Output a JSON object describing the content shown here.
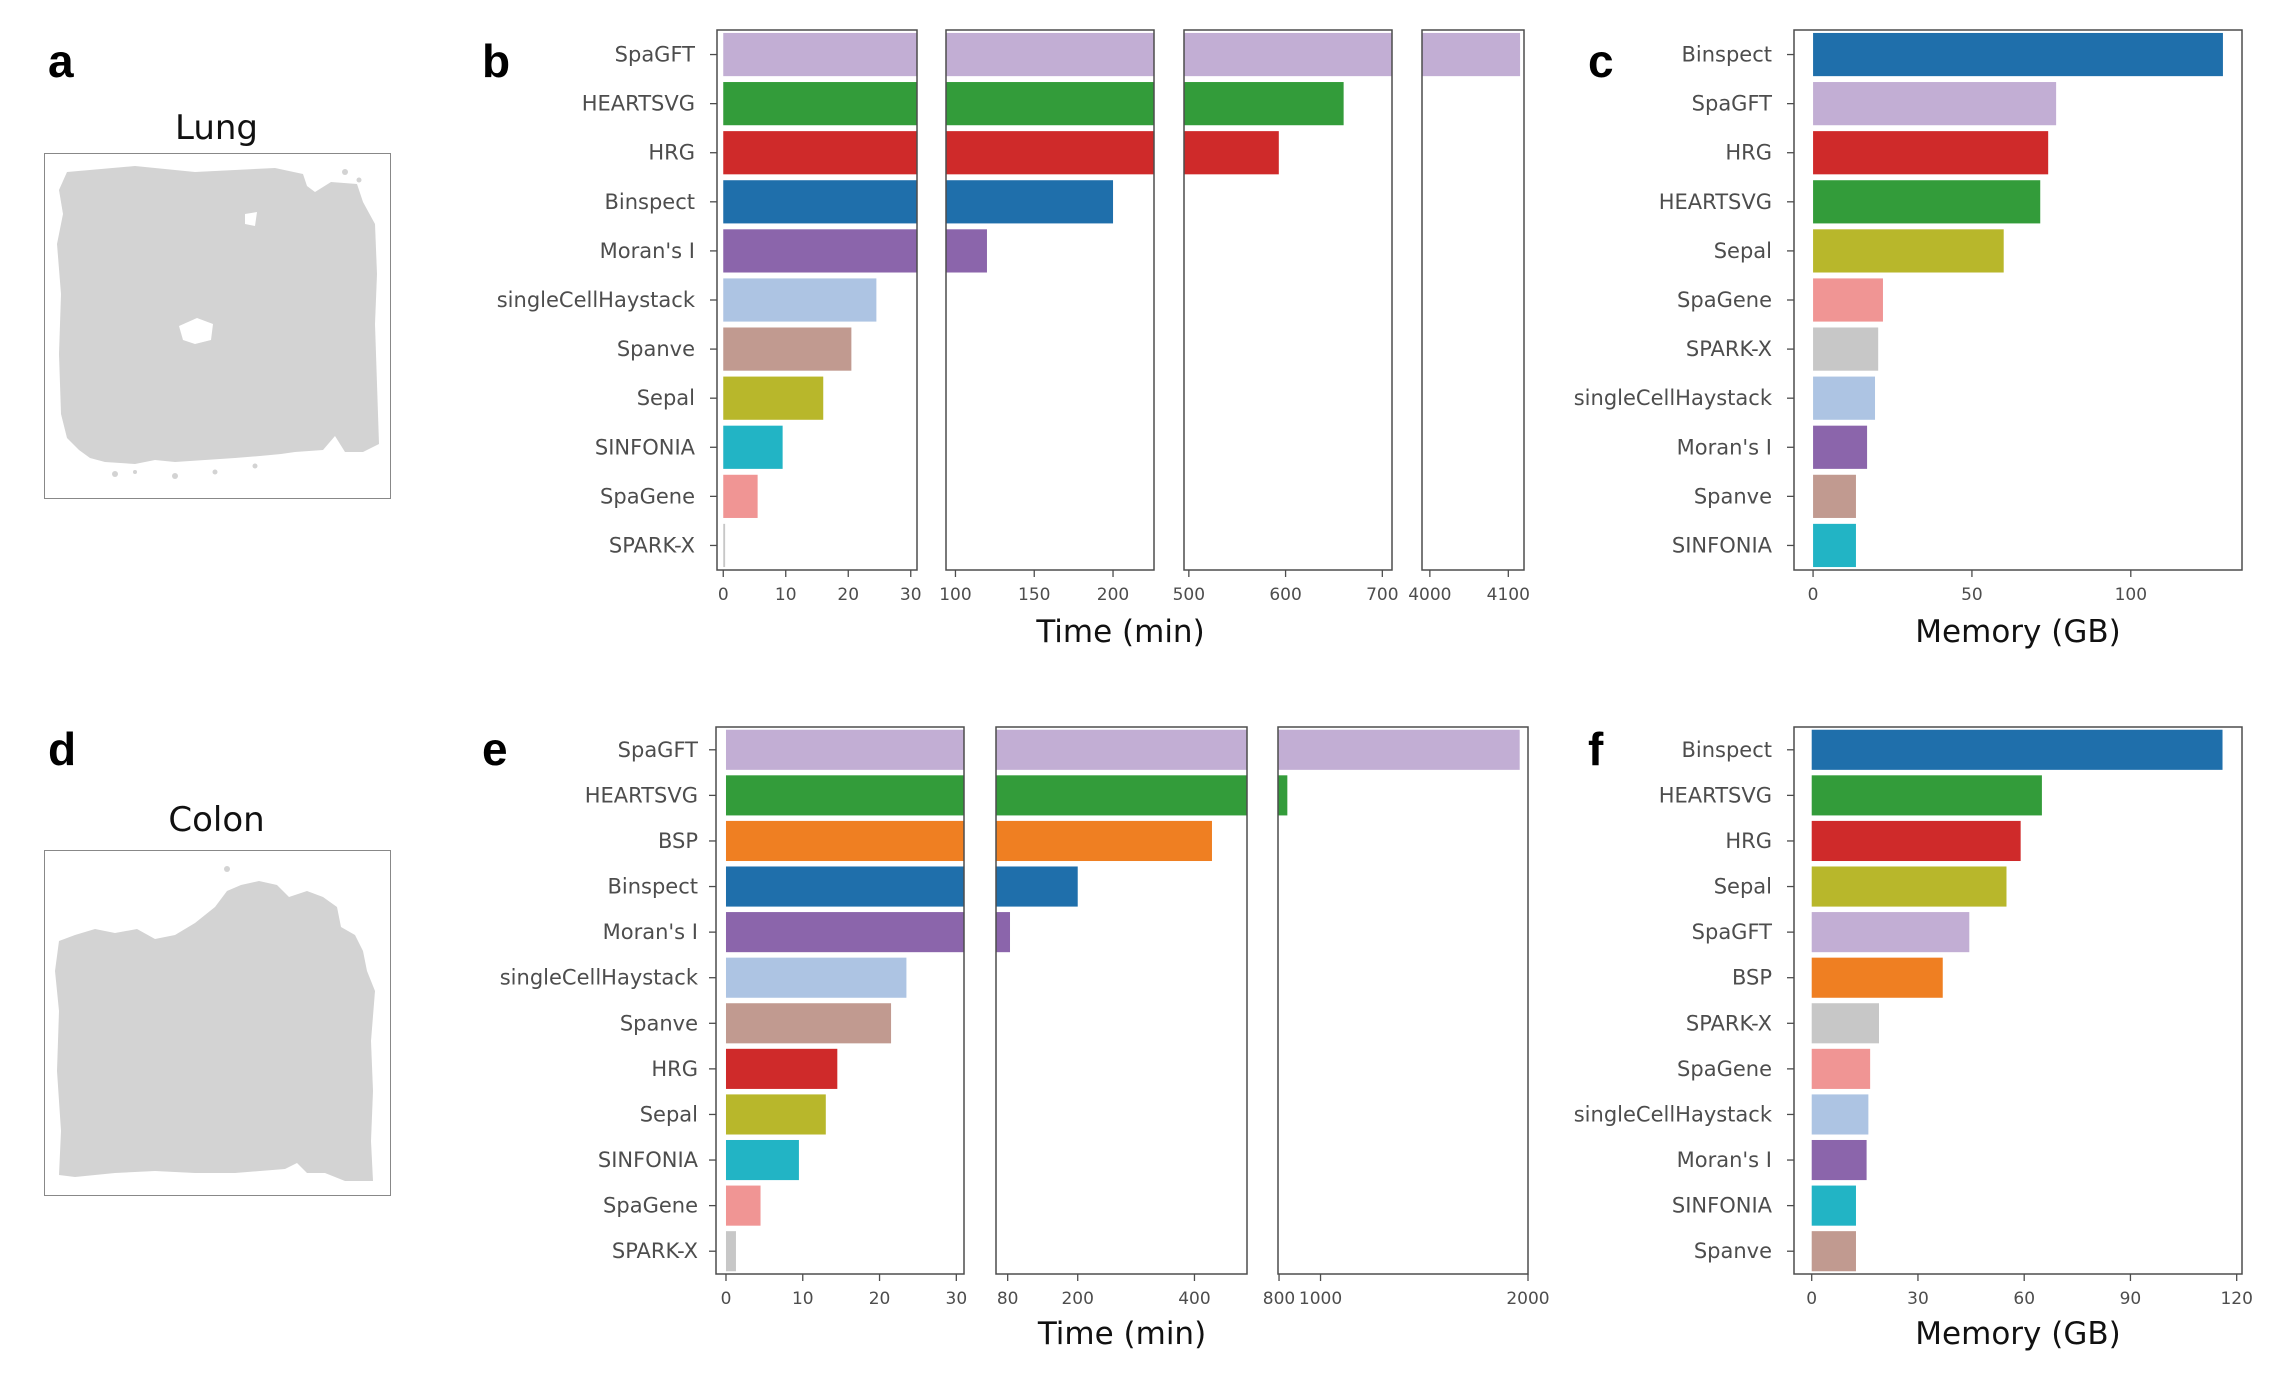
{
  "panel_labels": {
    "a": "a",
    "b": "b",
    "c": "c",
    "d": "d",
    "e": "e",
    "f": "f"
  },
  "tissues": {
    "lung": "Lung",
    "colon": "Colon"
  },
  "chart_data": [
    {
      "id": "b",
      "type": "bar",
      "orientation": "horizontal",
      "broken_axis": true,
      "xlabel": "Time (min)",
      "categories": [
        "SpaGFT",
        "HEARTSVG",
        "HRG",
        "Binspect",
        "Moran's I",
        "singleCellHaystack",
        "Spanve",
        "Sepal",
        "SINFONIA",
        "SpaGene",
        "SPARK-X"
      ],
      "values": [
        4115,
        660,
        593,
        200,
        120,
        24.5,
        20.5,
        16,
        9.5,
        5.5,
        0.3
      ],
      "colors": [
        "#c2aed4",
        "#339c3a",
        "#cf2a2a",
        "#1f6fab",
        "#8b65ab",
        "#adc4e3",
        "#c19a90",
        "#b8b72b",
        "#22b4c5",
        "#f09594",
        "#c7c7c7"
      ],
      "segments": [
        {
          "range": [
            -1,
            31
          ],
          "ticks": [
            0,
            10,
            20,
            30
          ]
        },
        {
          "range": [
            94,
            226
          ],
          "ticks": [
            100,
            150,
            200
          ]
        },
        {
          "range": [
            495,
            710
          ],
          "ticks": [
            500,
            600,
            700
          ]
        },
        {
          "range": [
            3990,
            4120
          ],
          "ticks": [
            4000,
            4100
          ]
        }
      ]
    },
    {
      "id": "c",
      "type": "bar",
      "orientation": "horizontal",
      "xlabel": "Memory (GB)",
      "categories": [
        "Binspect",
        "SpaGFT",
        "HRG",
        "HEARTSVG",
        "Sepal",
        "SpaGene",
        "SPARK-X",
        "singleCellHaystack",
        "Moran's I",
        "Spanve",
        "SINFONIA"
      ],
      "values": [
        129,
        76.5,
        74,
        71.5,
        60,
        22,
        20.5,
        19.5,
        17,
        13.5,
        13.5
      ],
      "colors": [
        "#1f6fab",
        "#c2aed4",
        "#cf2a2a",
        "#339c3a",
        "#b8b72b",
        "#f09594",
        "#c7c7c7",
        "#adc4e3",
        "#8b65ab",
        "#c19a90",
        "#22b4c5"
      ],
      "xlim": [
        -6,
        135
      ],
      "ticks": [
        0,
        50,
        100
      ]
    },
    {
      "id": "e",
      "type": "bar",
      "orientation": "horizontal",
      "broken_axis": true,
      "xlabel": "Time (min)",
      "categories": [
        "SpaGFT",
        "HEARTSVG",
        "BSP",
        "Binspect",
        "Moran's I",
        "singleCellHaystack",
        "Spanve",
        "HRG",
        "Sepal",
        "SINFONIA",
        "SpaGene",
        "SPARK-X"
      ],
      "values": [
        1960,
        840,
        430,
        200,
        84,
        23.5,
        21.5,
        14.5,
        13,
        9.5,
        4.5,
        1.3
      ],
      "colors": [
        "#c2aed4",
        "#339c3a",
        "#ef7f22",
        "#1f6fab",
        "#8b65ab",
        "#adc4e3",
        "#c19a90",
        "#cf2a2a",
        "#b8b72b",
        "#22b4c5",
        "#f09594",
        "#c7c7c7"
      ],
      "segments": [
        {
          "range": [
            -1.3,
            31
          ],
          "ticks": [
            0,
            10,
            20,
            30
          ]
        },
        {
          "range": [
            60,
            490
          ],
          "ticks": [
            80,
            200,
            400
          ]
        },
        {
          "range": [
            795,
            2000
          ],
          "ticks": [
            800,
            1000,
            2000
          ]
        }
      ]
    },
    {
      "id": "f",
      "type": "bar",
      "orientation": "horizontal",
      "xlabel": "Memory (GB)",
      "categories": [
        "Binspect",
        "HEARTSVG",
        "HRG",
        "Sepal",
        "SpaGFT",
        "BSP",
        "SPARK-X",
        "SpaGene",
        "singleCellHaystack",
        "Moran's I",
        "SINFONIA",
        "Spanve"
      ],
      "values": [
        116,
        65,
        59,
        55,
        44.5,
        37,
        19,
        16.5,
        16,
        15.5,
        12.5,
        12.5
      ],
      "colors": [
        "#1f6fab",
        "#339c3a",
        "#cf2a2a",
        "#b8b72b",
        "#c2aed4",
        "#ef7f22",
        "#c7c7c7",
        "#f09594",
        "#adc4e3",
        "#8b65ab",
        "#22b4c5",
        "#c19a90"
      ],
      "xlim": [
        -5,
        121.5
      ],
      "ticks": [
        0,
        30,
        60,
        90,
        120
      ]
    }
  ]
}
